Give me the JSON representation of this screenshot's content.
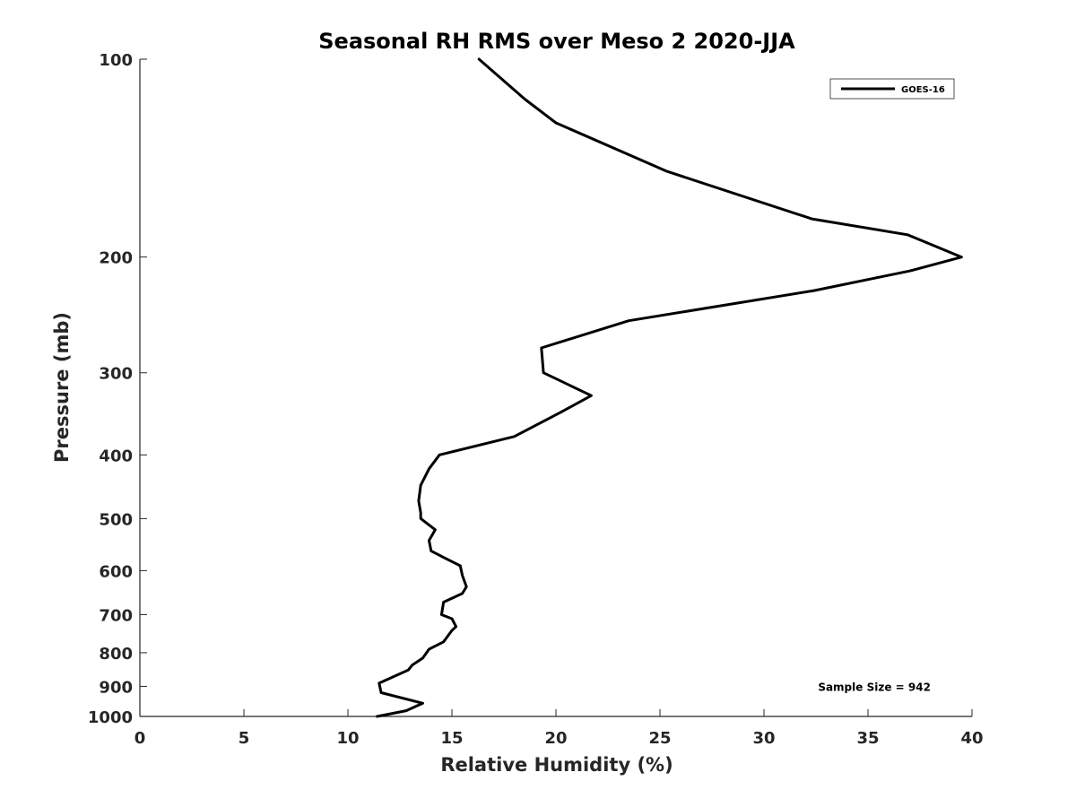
{
  "chart_data": {
    "type": "line",
    "title": "Seasonal RH RMS over Meso 2  2020-JJA",
    "xlabel": "Relative Humidity (%)",
    "ylabel": "Pressure (mb)",
    "xlim": [
      0,
      40
    ],
    "ylim": [
      100,
      1000
    ],
    "y_scale": "log",
    "y_reversed": true,
    "grid": false,
    "x_ticks": [
      0,
      5,
      10,
      15,
      20,
      25,
      30,
      35,
      40
    ],
    "y_ticks": [
      100,
      200,
      300,
      400,
      500,
      600,
      700,
      800,
      900,
      1000
    ],
    "legend_position": "top-right",
    "series": [
      {
        "name": "GOES-16",
        "color": "#000000",
        "x": [
          16.3,
          18.5,
          20.0,
          25.3,
          32.3,
          36.9,
          39.5,
          37.0,
          32.4,
          23.5,
          19.3,
          19.4,
          21.7,
          20.2,
          18.0,
          14.4,
          13.9,
          13.5,
          13.4,
          13.5,
          13.5,
          14.2,
          13.9,
          14.0,
          14.7,
          15.4,
          15.5,
          15.7,
          15.5,
          14.6,
          14.5,
          15.0,
          15.2,
          15.0,
          14.6,
          13.9,
          13.6,
          13.1,
          12.9,
          11.5,
          11.6,
          13.6,
          12.8,
          11.4
        ],
        "y": [
          100,
          115,
          125,
          148,
          175,
          185,
          200,
          210,
          225,
          250,
          275,
          300,
          325,
          345,
          375,
          400,
          420,
          445,
          470,
          490,
          500,
          520,
          540,
          560,
          575,
          590,
          610,
          635,
          650,
          670,
          700,
          710,
          730,
          740,
          770,
          790,
          815,
          835,
          850,
          890,
          920,
          955,
          980,
          1000
        ]
      }
    ],
    "annotations": [
      {
        "text": "Sample Size = 942",
        "x": 32.6,
        "y": 900
      }
    ]
  }
}
